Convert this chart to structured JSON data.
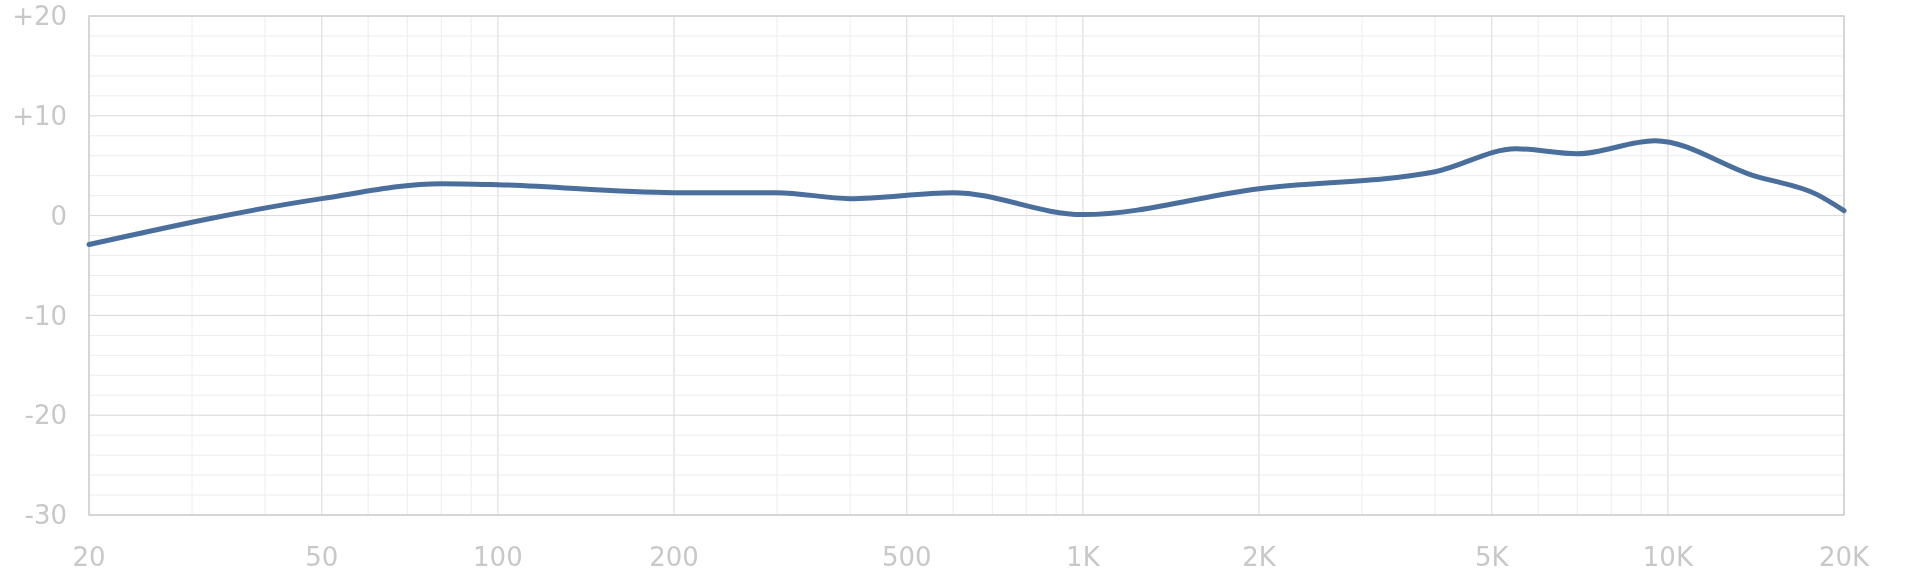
{
  "chart_data": {
    "type": "line",
    "log": "x",
    "x": [
      20,
      50,
      80,
      100,
      200,
      300,
      400,
      600,
      1000,
      2000,
      4000,
      5500,
      7000,
      9500,
      14000,
      18000,
      20000
    ],
    "series": [
      {
        "color": "#4a6f9c",
        "values": [
          -2.9,
          1.7,
          3.2,
          3.1,
          2.3,
          2.3,
          1.7,
          2.3,
          0.1,
          2.7,
          4.4,
          6.7,
          6.2,
          7.5,
          4.0,
          2.1,
          0.5
        ]
      }
    ],
    "xlim": [
      20,
      20000
    ],
    "ylim": [
      -30,
      20
    ],
    "xticks": [
      20,
      {
        "value": 30,
        "label": null
      },
      {
        "value": 40,
        "label": null
      },
      50,
      {
        "value": 60,
        "label": null
      },
      {
        "value": 70,
        "label": null
      },
      {
        "value": 80,
        "label": null
      },
      {
        "value": 90,
        "label": null
      },
      100,
      200,
      {
        "value": 300,
        "label": null
      },
      {
        "value": 400,
        "label": null
      },
      500,
      {
        "value": 600,
        "label": null
      },
      {
        "value": 700,
        "label": null
      },
      {
        "value": 800,
        "label": null
      },
      {
        "value": 900,
        "label": null
      },
      {
        "value": 1000,
        "label": "1K"
      },
      {
        "value": 2000,
        "label": "2K"
      },
      {
        "value": 3000,
        "label": null
      },
      {
        "value": 4000,
        "label": null
      },
      {
        "value": 5000,
        "label": "5K"
      },
      {
        "value": 6000,
        "label": null
      },
      {
        "value": 7000,
        "label": null
      },
      {
        "value": 8000,
        "label": null
      },
      {
        "value": 9000,
        "label": null
      },
      {
        "value": 10000,
        "label": "10K"
      },
      {
        "value": 20000,
        "label": "20K"
      }
    ],
    "yticks": [
      {
        "value": -30,
        "label": "-30"
      },
      {
        "value": -28,
        "label": null
      },
      {
        "value": -26,
        "label": null
      },
      {
        "value": -24,
        "label": null
      },
      {
        "value": -22,
        "label": null
      },
      {
        "value": -20,
        "label": "-20"
      },
      {
        "value": -18,
        "label": null
      },
      {
        "value": -16,
        "label": null
      },
      {
        "value": -14,
        "label": null
      },
      {
        "value": -12,
        "label": null
      },
      {
        "value": -10,
        "label": "-10"
      },
      {
        "value": -8,
        "label": null
      },
      {
        "value": -6,
        "label": null
      },
      {
        "value": -4,
        "label": null
      },
      {
        "value": -2,
        "label": null
      },
      0,
      {
        "value": 2,
        "label": null
      },
      {
        "value": 4,
        "label": null
      },
      {
        "value": 6,
        "label": null
      },
      {
        "value": 8,
        "label": null
      },
      {
        "value": 10,
        "label": "+10"
      },
      {
        "value": 12,
        "label": null
      },
      {
        "value": 14,
        "label": null
      },
      {
        "value": 16,
        "label": null
      },
      {
        "value": 18,
        "label": null
      },
      {
        "value": 20,
        "label": "+20"
      }
    ],
    "grid": true,
    "marker": "none",
    "line_style": "solid"
  }
}
